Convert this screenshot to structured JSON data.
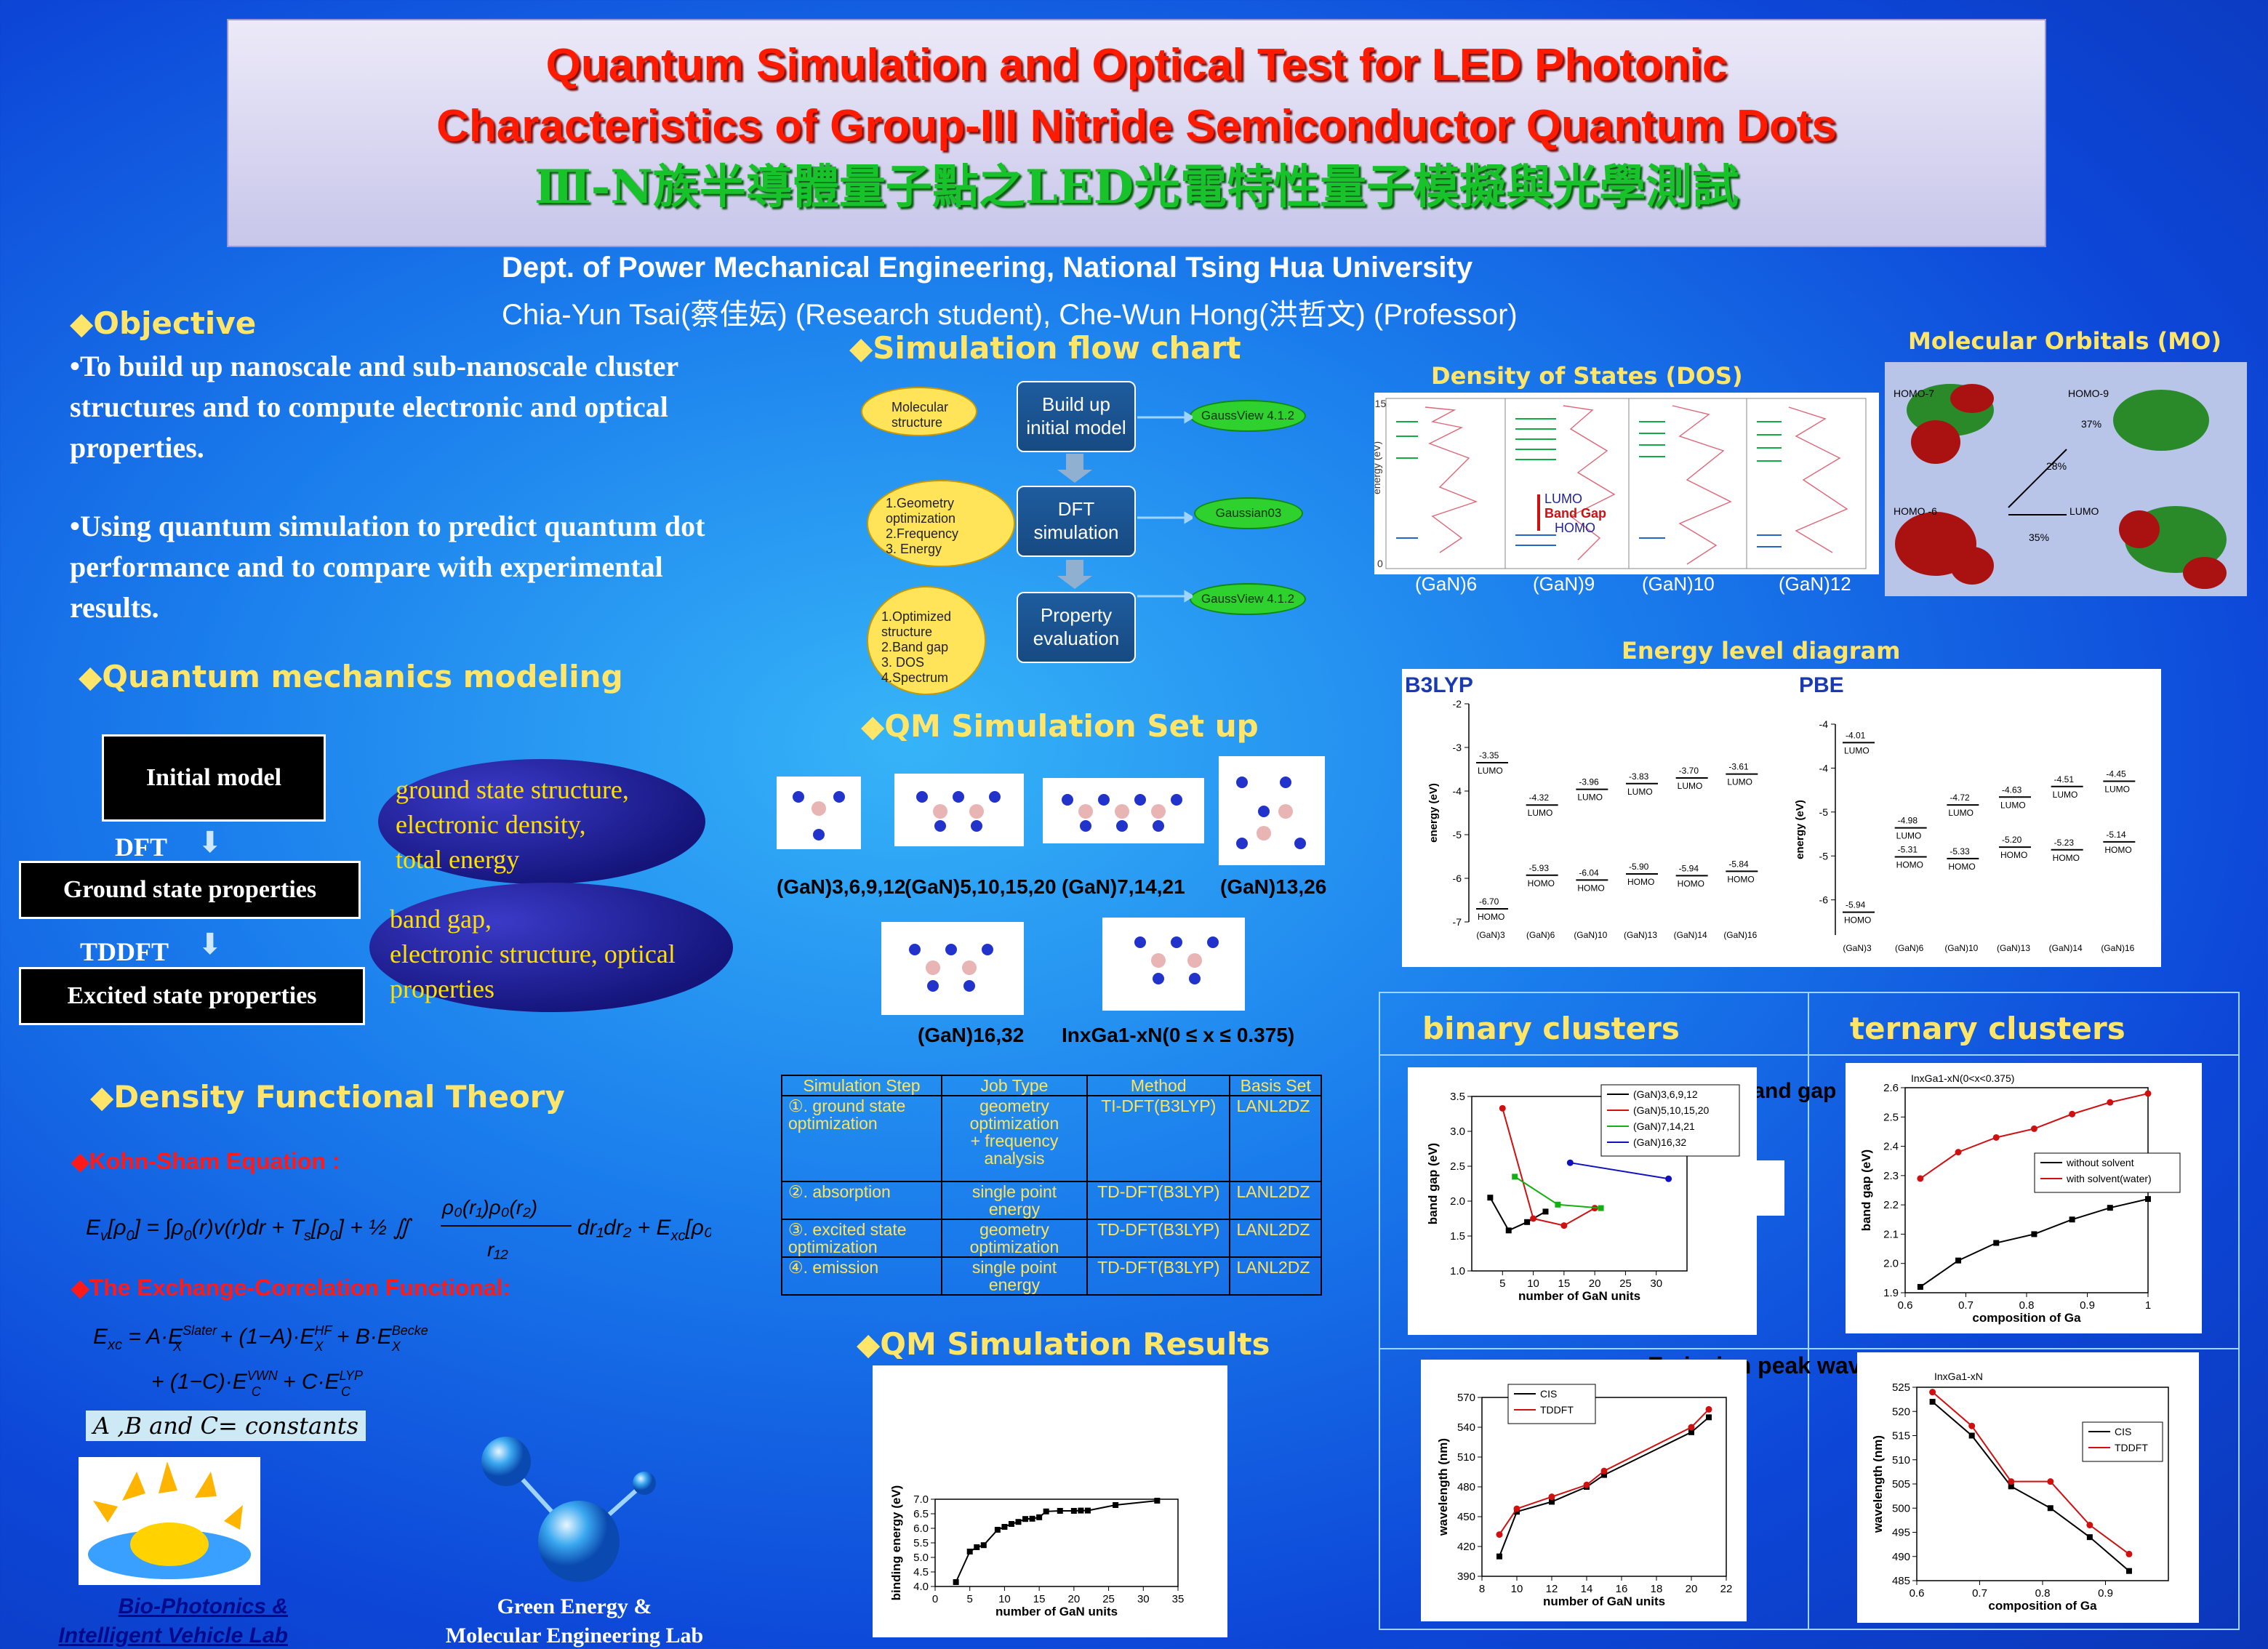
{
  "header": {
    "title_line1": "Quantum Simulation and Optical Test for LED Photonic",
    "title_line2": "Characteristics of Group-III Nitride Semiconductor Quantum Dots",
    "title_line3": "Ⅲ-N族半導體量子點之LED光電特性量子模擬與光學測試",
    "dept": "Dept. of Power Mechanical Engineering, National Tsing Hua University",
    "authors": "Chia-Yun Tsai(蔡佳妘) (Research student), Che-Wun Hong(洪哲文) (Professor)"
  },
  "objective": {
    "heading": "◆Objective",
    "p1": "•To build up nanoscale and sub-nanoscale cluster structures and to compute electronic and optical properties.",
    "p2": "•Using quantum simulation to predict quantum dot performance and to compare with experimental results."
  },
  "qm_modeling": {
    "heading": "◆Quantum mechanics modeling",
    "initial": "Initial  model",
    "dft": "DFT",
    "ground": "Ground state properties",
    "tddft": "TDDFT",
    "excited": "Excited state properties",
    "bubble1": [
      "ground state structure,",
      "electronic density,",
      "total energy"
    ],
    "bubble2": [
      "band gap,",
      "electronic structure, optical",
      "properties"
    ]
  },
  "dft": {
    "heading": "◆Density Functional Theory",
    "ks": "◆Kohn-Sham Equation :",
    "xc": "◆The Exchange-Correlation Functional:",
    "constants": "A ,B and C= constants"
  },
  "labs": {
    "left_1": "Bio-Photonics &",
    "left_2": "Intelligent Vehicle Lab",
    "right_1": "Green Energy &",
    "right_2": "Molecular Engineering Lab"
  },
  "flow": {
    "heading": "◆Simulation flow chart",
    "steps": [
      {
        "in": "Molecular structure",
        "box": "Build up initial model",
        "tool": "GaussView 4.1.2"
      },
      {
        "in": "1.Geometry optimization\n2.Frequency\n3. Energy",
        "box": "DFT simulation",
        "tool": "Gaussian03"
      },
      {
        "in": "1.Optimized structure\n2.Band gap\n3. DOS\n4.Spectrum",
        "box": "Property evaluation",
        "tool": "GaussView 4.1.2"
      }
    ]
  },
  "setup": {
    "heading": "◆QM Simulation Set up",
    "labels": [
      "(GaN)3,6,9,12",
      "(GaN)5,10,15,20",
      "(GaN)7,14,21",
      "(GaN)13,26",
      "(GaN)16,32",
      "InxGa1-xN(0 ≤ x ≤ 0.375)"
    ],
    "table_headers": [
      "Simulation Step",
      "Job Type",
      "Method",
      "Basis Set"
    ],
    "table_rows": [
      [
        "①. ground state optimization",
        "geometry optimization\n+ frequency analysis",
        "TI-DFT(B3LYP)",
        "LANL2DZ"
      ],
      [
        "②. absorption",
        "single point energy",
        "TD-DFT(B3LYP)",
        "LANL2DZ"
      ],
      [
        "③. excited state optimization",
        "geometry optimization",
        "TD-DFT(B3LYP)",
        "LANL2DZ"
      ],
      [
        "④. emission",
        "single point energy",
        "TD-DFT(B3LYP)",
        "LANL2DZ"
      ]
    ]
  },
  "results": {
    "heading": "◆QM Simulation Results"
  },
  "dos": {
    "heading": "Density of States (DOS)",
    "labels": [
      "(GaN)6",
      "(GaN)9",
      "(GaN)10",
      "(GaN)12"
    ],
    "lumo": "LUMO",
    "band_gap": "Band Gap",
    "homo": "HOMO",
    "ylabel": "energy (eV)",
    "y_top": "-15",
    "y_bot": "0"
  },
  "mo": {
    "heading": "Molecular Orbitals (MO)",
    "labels": [
      "HOMO-7",
      "HOMO-9",
      "HOMO -6",
      "LUMO"
    ],
    "percents": [
      "37%",
      "28%",
      "35%"
    ]
  },
  "energy_level": {
    "heading": "Energy level diagram",
    "b3lyp": "B3LYP",
    "pbe": "PBE"
  },
  "clusters": {
    "binary": "binary clusters",
    "ternary": "ternary clusters",
    "band_gap": "band gap",
    "emission": "Emission peak wavelength"
  },
  "chart_data": [
    {
      "id": "binding",
      "type": "line",
      "title": "",
      "xlabel": "number of GaN units",
      "ylabel": "binding energy (eV)",
      "xlim": [
        0,
        35
      ],
      "ylim": [
        4.0,
        7.0
      ],
      "x": [
        3,
        5,
        6,
        7,
        9,
        10,
        11,
        12,
        13,
        14,
        15,
        16,
        18,
        20,
        21,
        22,
        26,
        32
      ],
      "y": [
        4.15,
        5.2,
        5.35,
        5.42,
        5.95,
        6.05,
        6.15,
        6.22,
        6.32,
        6.33,
        6.38,
        6.58,
        6.6,
        6.6,
        6.61,
        6.61,
        6.8,
        6.95
      ]
    },
    {
      "id": "binary_gap",
      "type": "line",
      "xlabel": "number of GaN units",
      "ylabel": "band gap (eV)",
      "xlim": [
        0,
        35
      ],
      "ylim": [
        1.0,
        3.5
      ],
      "series": [
        {
          "name": "(GaN)3,6,9,12",
          "color": "#000000",
          "x": [
            3,
            6,
            9,
            12
          ],
          "y": [
            2.05,
            1.58,
            1.7,
            1.85
          ]
        },
        {
          "name": "(GaN)5,10,15,20",
          "color": "#d01010",
          "x": [
            5,
            10,
            15,
            20
          ],
          "y": [
            3.33,
            1.75,
            1.65,
            1.9
          ]
        },
        {
          "name": "(GaN)7,14,21",
          "color": "#12b012",
          "x": [
            7,
            14,
            21
          ],
          "y": [
            2.35,
            1.95,
            1.9
          ]
        },
        {
          "name": "(GaN)16,32",
          "color": "#1010c0",
          "x": [
            16,
            32
          ],
          "y": [
            2.55,
            2.32
          ]
        }
      ]
    },
    {
      "id": "ternary_gap",
      "type": "line",
      "xlabel": "composition of Ga",
      "ylabel": "band gap (eV)",
      "xlim": [
        0.6,
        1.0
      ],
      "ylim": [
        1.9,
        2.6
      ],
      "title": "InxGa1-xN(0<x<0.375)",
      "series": [
        {
          "name": "without solvent",
          "color": "#000000",
          "x": [
            0.625,
            0.6875,
            0.75,
            0.8125,
            0.875,
            0.9375,
            1.0
          ],
          "y": [
            1.92,
            2.01,
            2.07,
            2.1,
            2.15,
            2.19,
            2.22
          ]
        },
        {
          "name": "with solvent(water)",
          "color": "#d01010",
          "x": [
            0.625,
            0.6875,
            0.75,
            0.8125,
            0.875,
            0.9375,
            1.0
          ],
          "y": [
            2.29,
            2.38,
            2.43,
            2.46,
            2.51,
            2.55,
            2.58
          ]
        }
      ]
    },
    {
      "id": "binary_emit",
      "type": "line",
      "xlabel": "number of GaN units",
      "ylabel": "wavelength (nm)",
      "xlim": [
        8,
        22
      ],
      "ylim": [
        390,
        570
      ],
      "series": [
        {
          "name": "CIS",
          "color": "#000000",
          "x": [
            9,
            10,
            12,
            14,
            15,
            20,
            21
          ],
          "y": [
            410,
            455,
            465,
            480,
            492,
            535,
            550
          ]
        },
        {
          "name": "TDDFT",
          "color": "#d01010",
          "x": [
            9,
            10,
            12,
            14,
            15,
            20,
            21
          ],
          "y": [
            432,
            458,
            470,
            482,
            496,
            540,
            558
          ]
        }
      ]
    },
    {
      "id": "ternary_emit",
      "type": "line",
      "xlabel": "composition of Ga",
      "ylabel": "wavelength (nm)",
      "xlim": [
        0.6,
        1.0
      ],
      "ylim": [
        485,
        525
      ],
      "title": "InxGa1-xN",
      "series": [
        {
          "name": "CIS",
          "color": "#000000",
          "x": [
            0.625,
            0.6875,
            0.75,
            0.8125,
            0.875,
            0.9375
          ],
          "y": [
            522,
            515,
            504.5,
            500,
            494,
            487
          ]
        },
        {
          "name": "TDDFT",
          "color": "#d01010",
          "x": [
            0.625,
            0.6875,
            0.75,
            0.8125,
            0.875,
            0.9375
          ],
          "y": [
            524,
            517,
            505.5,
            505.5,
            496.5,
            490.5
          ]
        }
      ]
    },
    {
      "id": "b3lyp_levels",
      "type": "scatter",
      "xlabel": "",
      "ylabel": "energy (eV)",
      "ylim": [
        -7,
        -2
      ],
      "categories": [
        "(GaN)3",
        "(GaN)6",
        "(GaN)10",
        "(GaN)13",
        "(GaN)14",
        "(GaN)16"
      ],
      "lumo": [
        -3.35,
        -4.32,
        -3.96,
        -3.83,
        -3.7,
        -3.61
      ],
      "homo": [
        -6.7,
        -5.93,
        -6.04,
        -5.9,
        -5.94,
        -5.84
      ]
    },
    {
      "id": "pbe_levels",
      "type": "scatter",
      "xlabel": "",
      "ylabel": "energy (eV)",
      "ylim": [
        -6.2,
        -3.8
      ],
      "categories": [
        "(GaN)3",
        "(GaN)6",
        "(GaN)10",
        "(GaN)13",
        "(GaN)14",
        "(GaN)16"
      ],
      "lumo": [
        -4.01,
        -4.98,
        -4.72,
        -4.63,
        -4.51,
        -4.45
      ],
      "homo": [
        -5.94,
        -5.31,
        -5.33,
        -5.2,
        -5.23,
        -5.14
      ]
    }
  ]
}
